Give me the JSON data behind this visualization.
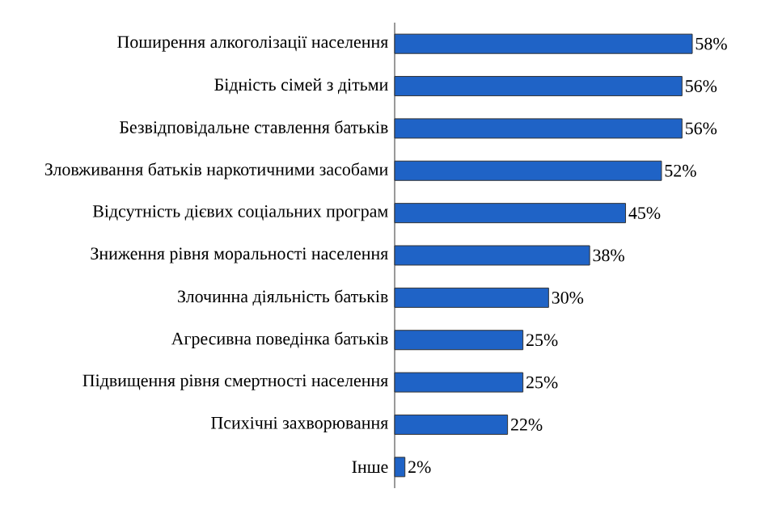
{
  "chart_data": {
    "type": "bar",
    "orientation": "horizontal",
    "color": "#1f63c6",
    "categories": [
      "Поширення алкоголізації населення",
      "Бідність сімей з дітьми",
      "Безвідповідальне ставлення батьків",
      "Зловживання батьків наркотичними засобами",
      "Відсутність дієвих соціальних програм",
      "Зниження рівня моральності населення",
      "Злочинна діяльність батьків",
      "Агресивна поведінка батьків",
      "Підвищення рівня смертності населення",
      "Психічні захворювання",
      "Інше"
    ],
    "values": [
      58,
      56,
      56,
      52,
      45,
      38,
      30,
      25,
      25,
      22,
      2
    ],
    "value_labels": [
      "58%",
      "56%",
      "56%",
      "52%",
      "45%",
      "38%",
      "30%",
      "25%",
      "25%",
      "22%",
      "2%"
    ]
  }
}
